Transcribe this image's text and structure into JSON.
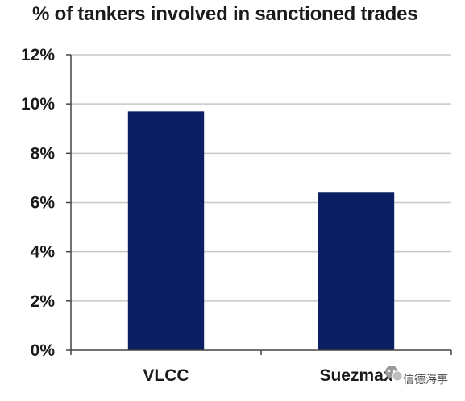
{
  "chart_data": {
    "type": "bar",
    "title": "% of tankers involved in sanctioned trades",
    "categories": [
      "VLCC",
      "Suezmax"
    ],
    "series": [
      {
        "values": [
          9.7,
          6.4
        ]
      }
    ],
    "ylim": [
      0,
      12
    ],
    "yticks": [
      0,
      2,
      4,
      6,
      8,
      10,
      12
    ],
    "ytick_format": "%",
    "xlabel": "",
    "ylabel": "",
    "grid": true,
    "legend": "none",
    "bar_color": "#0b1f63",
    "grid_color": "#c8c8c8",
    "axis_color": "#444444"
  },
  "watermark": {
    "text": "信德海事",
    "icon": "wechat-icon"
  }
}
